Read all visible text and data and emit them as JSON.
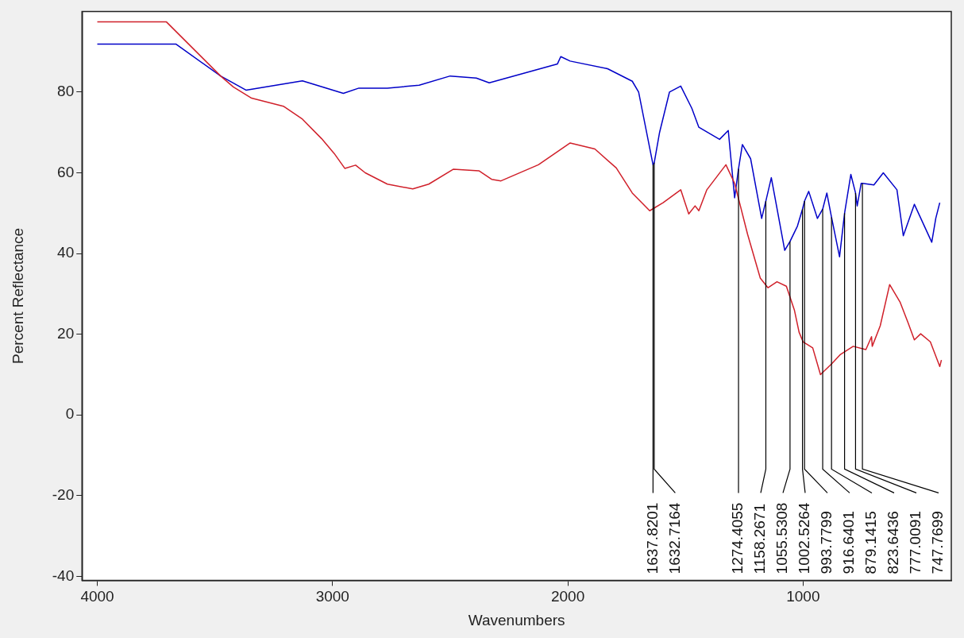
{
  "chart_data": {
    "type": "line",
    "xlabel": "Wavenumbers",
    "ylabel": "Percent Reflectance",
    "xlim": [
      4065,
      370
    ],
    "ylim": [
      -41,
      100
    ],
    "xticks": [
      4000,
      3000,
      2000,
      1000
    ],
    "yticks": [
      -40,
      -20,
      0,
      20,
      40,
      60,
      80
    ],
    "grid": false,
    "legend": false,
    "marker": "none",
    "line_style": "solid",
    "series": [
      {
        "color": "#d0202a",
        "x": [
          4000,
          3706,
          3476,
          3422,
          3344,
          3209,
          3128,
          3047,
          2993,
          2948,
          2902,
          2861,
          2767,
          2659,
          2591,
          2486,
          2378,
          2324,
          2284,
          2125,
          1990,
          1885,
          1794,
          1726,
          1652,
          1595,
          1520,
          1486,
          1459,
          1443,
          1409,
          1328,
          1291,
          1236,
          1182,
          1149,
          1111,
          1071,
          1037,
          1017,
          1000,
          959,
          926,
          878,
          841,
          787,
          733,
          709,
          706,
          672,
          632,
          588,
          554,
          527,
          500,
          459,
          419,
          412
        ],
        "values": [
          97.4,
          97.4,
          84,
          81.3,
          78.5,
          76.5,
          73.3,
          68.5,
          64.8,
          61.1,
          61.9,
          60,
          57.2,
          56,
          57.2,
          60.9,
          60.5,
          58.4,
          58,
          62,
          67.4,
          65.9,
          61.2,
          55,
          50.6,
          52.6,
          55.8,
          49.8,
          51.8,
          50.6,
          55.8,
          62,
          57.4,
          44.8,
          33.9,
          31.5,
          33,
          31.9,
          26,
          20.5,
          18.1,
          16.6,
          10,
          12.7,
          15,
          17,
          16.2,
          19.4,
          17,
          22.1,
          32.3,
          28,
          22.9,
          18.6,
          20.1,
          18.1,
          12,
          13.6
        ]
      },
      {
        "color": "#0000c8",
        "x": [
          4000,
          3665,
          3476,
          3368,
          3128,
          2954,
          2888,
          2767,
          2632,
          2500,
          2389,
          2334,
          2044,
          2030,
          1990,
          1831,
          1726,
          1699,
          1637.8201,
          1632.7164,
          1610,
          1568,
          1520,
          1473,
          1443,
          1355,
          1318,
          1291,
          1274.4055,
          1258,
          1223,
          1176,
          1158.2671,
          1135,
          1078,
          1055.5308,
          1024,
          1002.5264,
          993.7799,
          976,
          939,
          916.6401,
          899,
          879.1415,
          845,
          823.6436,
          797,
          777.0091,
          770,
          753,
          747.7699,
          699,
          659,
          601,
          574,
          527,
          453,
          436,
          419
        ],
        "values": [
          91.9,
          91.9,
          84,
          80.5,
          82.8,
          79.7,
          81,
          81,
          81.7,
          84,
          83.5,
          82.3,
          87,
          88.8,
          87.7,
          85.8,
          82.7,
          80,
          62,
          62.5,
          70,
          80,
          81.5,
          76,
          71.3,
          68.3,
          70.5,
          53.8,
          61,
          67,
          63.5,
          48.7,
          53,
          58.8,
          40.8,
          43,
          46.8,
          51,
          53,
          55.4,
          48.7,
          51,
          55,
          49,
          39.2,
          50,
          59.6,
          55,
          51.8,
          57.4,
          57.4,
          57,
          60,
          55.8,
          44.4,
          52.2,
          42.8,
          48.7,
          52.6
        ]
      }
    ],
    "annotations": [
      {
        "text": "1637.8201",
        "x": 1637.8201,
        "y": 62
      },
      {
        "text": "1632.7164",
        "x": 1632.7164,
        "y": 62.5
      },
      {
        "text": "1274.4055",
        "x": 1274.4055,
        "y": 61
      },
      {
        "text": "1158.2671",
        "x": 1158.2671,
        "y": 53
      },
      {
        "text": "1055.5308",
        "x": 1055.5308,
        "y": 43
      },
      {
        "text": "1002.5264",
        "x": 1002.5264,
        "y": 51
      },
      {
        "text": "993.7799",
        "x": 993.7799,
        "y": 53
      },
      {
        "text": "916.6401",
        "x": 916.6401,
        "y": 51
      },
      {
        "text": "879.1415",
        "x": 879.1415,
        "y": 49
      },
      {
        "text": "823.6436",
        "x": 823.6436,
        "y": 50
      },
      {
        "text": "777.0091",
        "x": 777.0091,
        "y": 55
      },
      {
        "text": "747.7699",
        "x": 747.7699,
        "y": 57.4
      }
    ]
  }
}
